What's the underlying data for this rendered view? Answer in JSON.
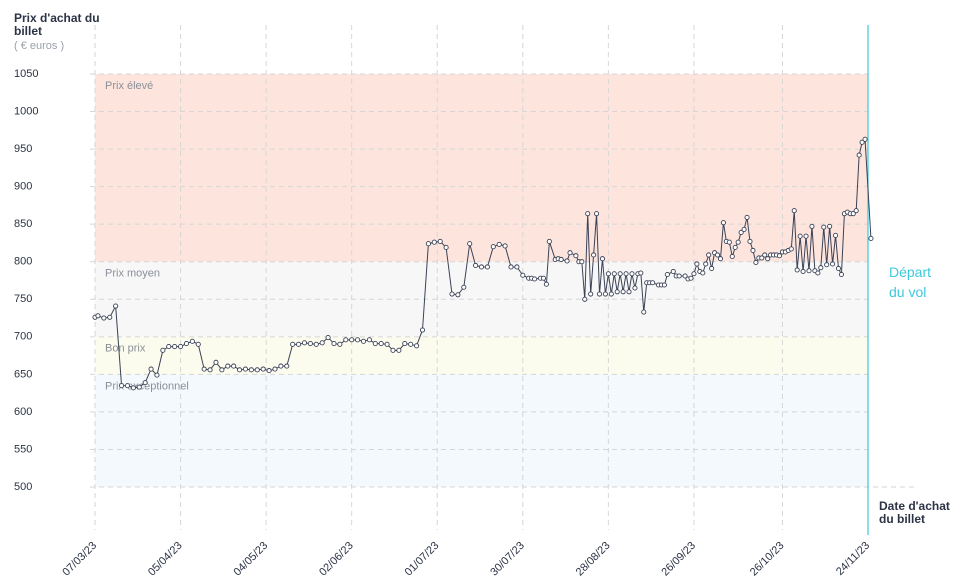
{
  "chart_data": {
    "type": "line",
    "y_axis_title": "Prix d'achat du billet",
    "y_axis_unit": "( € euros )",
    "x_axis_title": "Date d'achat du billet",
    "ylim": [
      500,
      1050
    ],
    "yticks": [
      500,
      550,
      600,
      650,
      700,
      750,
      800,
      850,
      900,
      950,
      1000,
      1050
    ],
    "xlim": [
      "2023-03-07",
      "2023-11-24"
    ],
    "xticks": [
      {
        "value": "2023-03-07",
        "label": "07/03/23"
      },
      {
        "value": "2023-04-05",
        "label": "05/04/23"
      },
      {
        "value": "2023-05-04",
        "label": "04/05/23"
      },
      {
        "value": "2023-06-02",
        "label": "02/06/23"
      },
      {
        "value": "2023-07-01",
        "label": "01/07/23"
      },
      {
        "value": "2023-07-30",
        "label": "30/07/23"
      },
      {
        "value": "2023-08-28",
        "label": "28/08/23"
      },
      {
        "value": "2023-09-26",
        "label": "26/09/23"
      },
      {
        "value": "2023-10-26",
        "label": "26/10/23"
      },
      {
        "value": "2023-11-24",
        "label": "24/11/23"
      }
    ],
    "grid": true,
    "bands": [
      {
        "label": "Prix élevé",
        "from": 800,
        "to": 1050,
        "color": "#fde5de"
      },
      {
        "label": "Prix moyen",
        "from": 700,
        "to": 800,
        "color": "#f7f7f7"
      },
      {
        "label": "Bon prix",
        "from": 650,
        "to": 700,
        "color": "#fcfcee"
      },
      {
        "label": "Prix exceptionnel",
        "from": 500,
        "to": 650,
        "color": "#f3f9fc"
      }
    ],
    "departure": {
      "date": "2023-11-24",
      "label": "Départ du vol",
      "color": "#3cc8dc"
    },
    "series": [
      {
        "color": "#3b4256",
        "x": [
          "2023-03-07",
          "2023-03-08",
          "2023-03-10",
          "2023-03-12",
          "2023-03-14",
          "2023-03-16",
          "2023-03-18",
          "2023-03-20",
          "2023-03-22",
          "2023-03-24",
          "2023-03-26",
          "2023-03-28",
          "2023-03-30",
          "2023-04-01",
          "2023-04-03",
          "2023-04-05",
          "2023-04-07",
          "2023-04-09",
          "2023-04-11",
          "2023-04-13",
          "2023-04-15",
          "2023-04-17",
          "2023-04-19",
          "2023-04-21",
          "2023-04-23",
          "2023-04-25",
          "2023-04-27",
          "2023-04-29",
          "2023-05-01",
          "2023-05-03",
          "2023-05-05",
          "2023-05-07",
          "2023-05-09",
          "2023-05-11",
          "2023-05-13",
          "2023-05-15",
          "2023-05-17",
          "2023-05-19",
          "2023-05-21",
          "2023-05-23",
          "2023-05-25",
          "2023-05-27",
          "2023-05-29",
          "2023-05-31",
          "2023-06-02",
          "2023-06-04",
          "2023-06-06",
          "2023-06-08",
          "2023-06-10",
          "2023-06-12",
          "2023-06-14",
          "2023-06-16",
          "2023-06-18",
          "2023-06-20",
          "2023-06-22",
          "2023-06-24",
          "2023-06-26",
          "2023-06-28",
          "2023-06-30",
          "2023-07-02",
          "2023-07-04",
          "2023-07-06",
          "2023-07-08",
          "2023-07-10",
          "2023-07-12",
          "2023-07-14",
          "2023-07-16",
          "2023-07-18",
          "2023-07-20",
          "2023-07-22",
          "2023-07-24",
          "2023-07-26",
          "2023-07-28",
          "2023-07-30",
          "2023-08-01",
          "2023-08-02",
          "2023-08-03",
          "2023-08-05",
          "2023-08-06",
          "2023-08-07",
          "2023-08-08",
          "2023-08-10",
          "2023-08-11",
          "2023-08-12",
          "2023-08-14",
          "2023-08-15",
          "2023-08-17",
          "2023-08-18",
          "2023-08-19",
          "2023-08-20",
          "2023-08-21",
          "2023-08-22",
          "2023-08-23",
          "2023-08-24",
          "2023-08-25",
          "2023-08-26",
          "2023-08-27",
          "2023-08-28",
          "2023-08-29",
          "2023-08-30",
          "2023-08-31",
          "2023-09-01",
          "2023-09-02",
          "2023-09-03",
          "2023-09-04",
          "2023-09-05",
          "2023-09-06",
          "2023-09-07",
          "2023-09-08",
          "2023-09-09",
          "2023-09-10",
          "2023-09-11",
          "2023-09-12",
          "2023-09-14",
          "2023-09-15",
          "2023-09-16",
          "2023-09-17",
          "2023-09-19",
          "2023-09-20",
          "2023-09-21",
          "2023-09-23",
          "2023-09-24",
          "2023-09-25",
          "2023-09-26",
          "2023-09-27",
          "2023-09-28",
          "2023-09-29",
          "2023-09-30",
          "2023-10-01",
          "2023-10-02",
          "2023-10-03",
          "2023-10-04",
          "2023-10-05",
          "2023-10-06",
          "2023-10-07",
          "2023-10-08",
          "2023-10-09",
          "2023-10-10",
          "2023-10-11",
          "2023-10-12",
          "2023-10-13",
          "2023-10-14",
          "2023-10-15",
          "2023-10-16",
          "2023-10-17",
          "2023-10-18",
          "2023-10-19",
          "2023-10-20",
          "2023-10-21",
          "2023-10-22",
          "2023-10-23",
          "2023-10-24",
          "2023-10-25",
          "2023-10-26",
          "2023-10-27",
          "2023-10-28",
          "2023-10-29",
          "2023-10-30",
          "2023-10-31",
          "2023-11-01",
          "2023-11-02",
          "2023-11-03",
          "2023-11-04",
          "2023-11-05",
          "2023-11-06",
          "2023-11-07",
          "2023-11-08",
          "2023-11-09",
          "2023-11-10",
          "2023-11-11",
          "2023-11-12",
          "2023-11-13",
          "2023-11-14",
          "2023-11-15",
          "2023-11-16",
          "2023-11-17",
          "2023-11-18",
          "2023-11-19",
          "2023-11-20",
          "2023-11-21",
          "2023-11-22",
          "2023-11-23",
          "2023-11-25"
        ],
        "values": [
          726,
          728,
          725,
          726,
          741,
          635,
          635,
          632,
          633,
          639,
          657,
          649,
          682,
          687,
          687,
          687,
          691,
          694,
          690,
          657,
          656,
          666,
          656,
          661,
          661,
          656,
          657,
          656,
          656,
          657,
          655,
          657,
          661,
          661,
          690,
          690,
          692,
          691,
          690,
          692,
          699,
          691,
          690,
          696,
          696,
          696,
          694,
          696,
          691,
          691,
          690,
          682,
          682,
          691,
          690,
          688,
          709,
          824,
          826,
          827,
          819,
          757,
          756,
          766,
          824,
          795,
          793,
          793,
          820,
          823,
          821,
          793,
          793,
          782,
          778,
          778,
          777,
          778,
          778,
          770,
          827,
          803,
          804,
          803,
          801,
          812,
          808,
          800,
          800,
          750,
          864,
          757,
          809,
          864,
          757,
          804,
          757,
          784,
          757,
          784,
          760,
          784,
          760,
          784,
          760,
          784,
          765,
          784,
          785,
          733,
          772,
          772,
          772,
          769,
          769,
          769,
          783,
          787,
          781,
          781,
          781,
          777,
          778,
          784,
          797,
          787,
          785,
          797,
          809,
          791,
          812,
          809,
          804,
          852,
          827,
          826,
          807,
          819,
          826,
          839,
          843,
          859,
          827,
          815,
          799,
          805,
          805,
          809,
          804,
          809,
          809,
          809,
          808,
          813,
          813,
          815,
          817,
          868,
          789,
          834,
          787,
          834,
          788,
          847,
          788,
          785,
          792,
          846,
          796,
          847,
          797,
          835,
          791,
          783,
          864,
          866,
          864,
          864,
          868,
          942,
          959,
          963,
          831
        ]
      }
    ]
  }
}
